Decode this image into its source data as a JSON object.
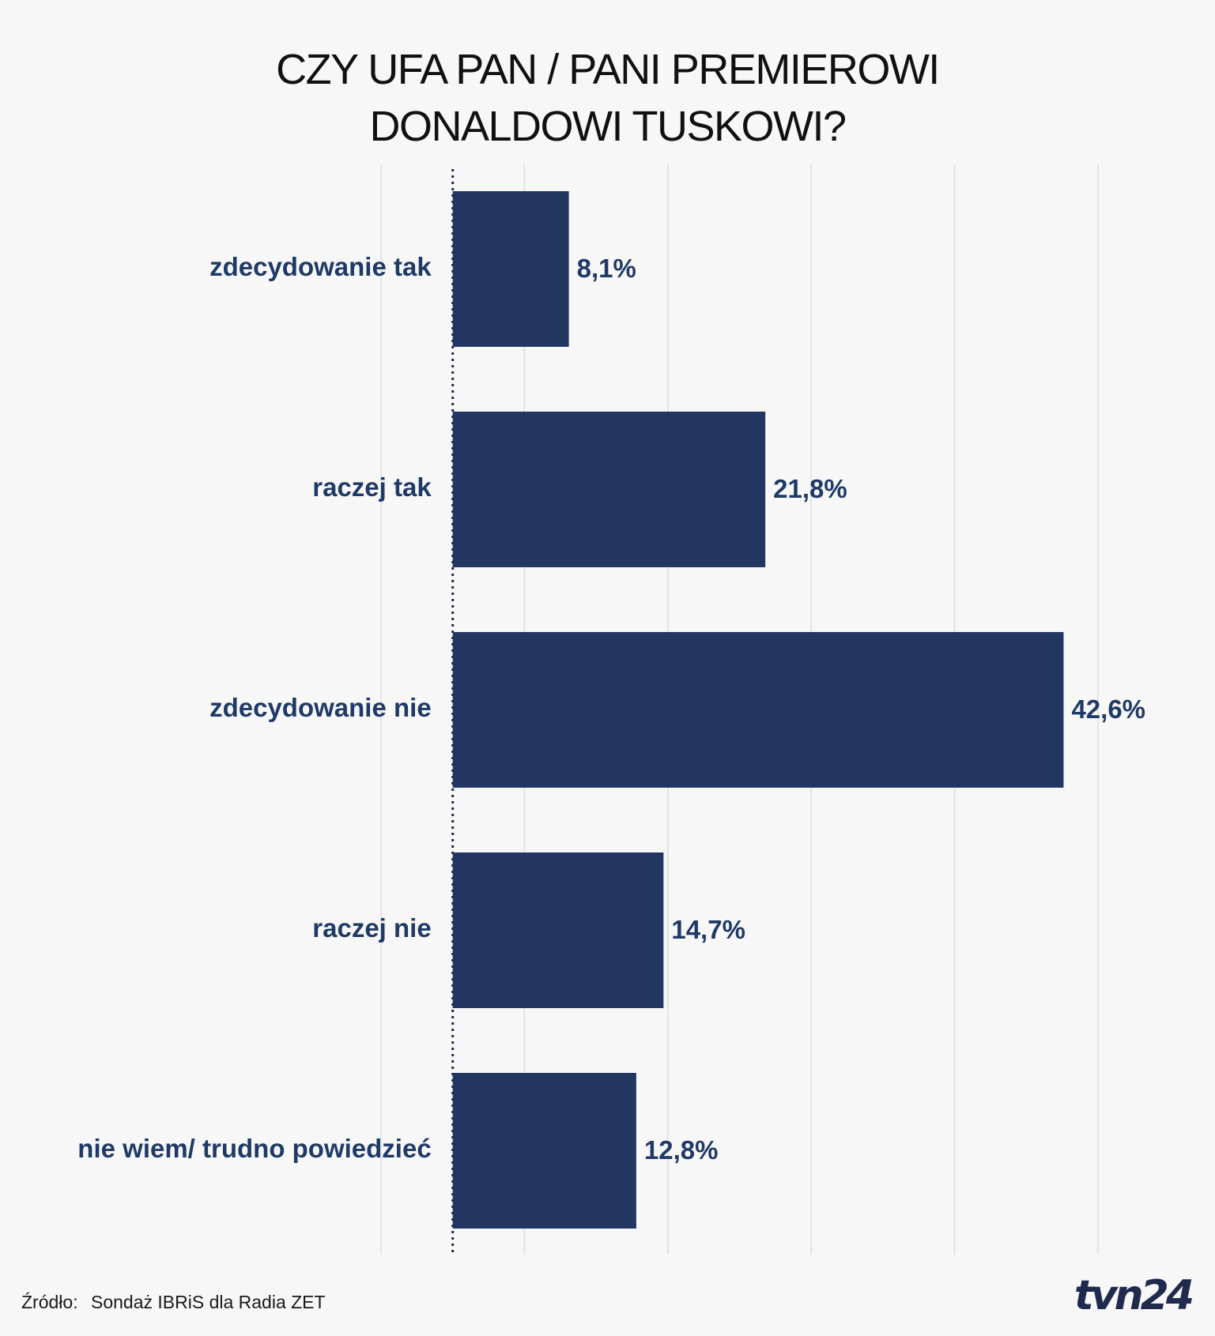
{
  "title": {
    "line1": "CZY UFA PAN / PANI PREMIEROWI",
    "line2": "DONALDOWI TUSKOWI?"
  },
  "colors": {
    "bar": "#213762",
    "label": "#1f3a66",
    "grid": "#dddddd",
    "baseline": "#1f2a4d"
  },
  "chart_data": {
    "type": "bar",
    "orientation": "horizontal",
    "title": "CZY UFA PAN / PANI PREMIEROWI DONALDOWI TUSKOWI?",
    "categories": [
      "zdecydowanie tak",
      "raczej tak",
      "zdecydowanie nie",
      "raczej nie",
      "nie wiem/ trudno powiedzieć"
    ],
    "values": [
      8.1,
      21.8,
      42.6,
      14.7,
      12.8
    ],
    "value_labels": [
      "8,1%",
      "21,8%",
      "42,6%",
      "14,7%",
      "12,8%"
    ],
    "xlim": [
      -5,
      50
    ],
    "gridlines": [
      -5,
      5,
      15,
      25,
      35,
      45
    ],
    "xlabel": "",
    "ylabel": ""
  },
  "footer": {
    "source_label": "Źródło:",
    "source_text": "Sondaż IBRiS dla Radia ZET",
    "logo": "tvn24"
  }
}
